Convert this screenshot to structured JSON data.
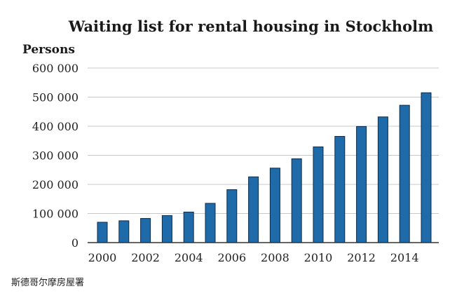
{
  "caption": "斯德哥尔摩房屋署",
  "colors": {
    "bar": "#1f6aa8",
    "bar_edge": "#0d2c4a",
    "grid": "#c8c8c8",
    "axis": "#333333"
  },
  "chart_data": {
    "type": "bar",
    "title": "Waiting list for rental housing in Stockholm",
    "ylabel": "Persons",
    "xlabel": "",
    "categories": [
      2000,
      2001,
      2002,
      2003,
      2004,
      2005,
      2006,
      2007,
      2008,
      2009,
      2010,
      2011,
      2012,
      2013,
      2014,
      2015
    ],
    "values": [
      70000,
      75000,
      83000,
      93000,
      105000,
      135000,
      182000,
      226000,
      256000,
      288000,
      329000,
      365000,
      399000,
      432000,
      472000,
      515000
    ],
    "ylim": [
      0,
      600000
    ],
    "yticks": [
      0,
      100000,
      200000,
      300000,
      400000,
      500000,
      600000
    ],
    "ytick_labels": [
      "0",
      "100 000",
      "200 000",
      "300 000",
      "400 000",
      "500 000",
      "600 000"
    ],
    "xtick_labels": [
      "2000",
      "2002",
      "2004",
      "2006",
      "2008",
      "2010",
      "2012",
      "2014"
    ],
    "grid": true,
    "legend": "none"
  }
}
